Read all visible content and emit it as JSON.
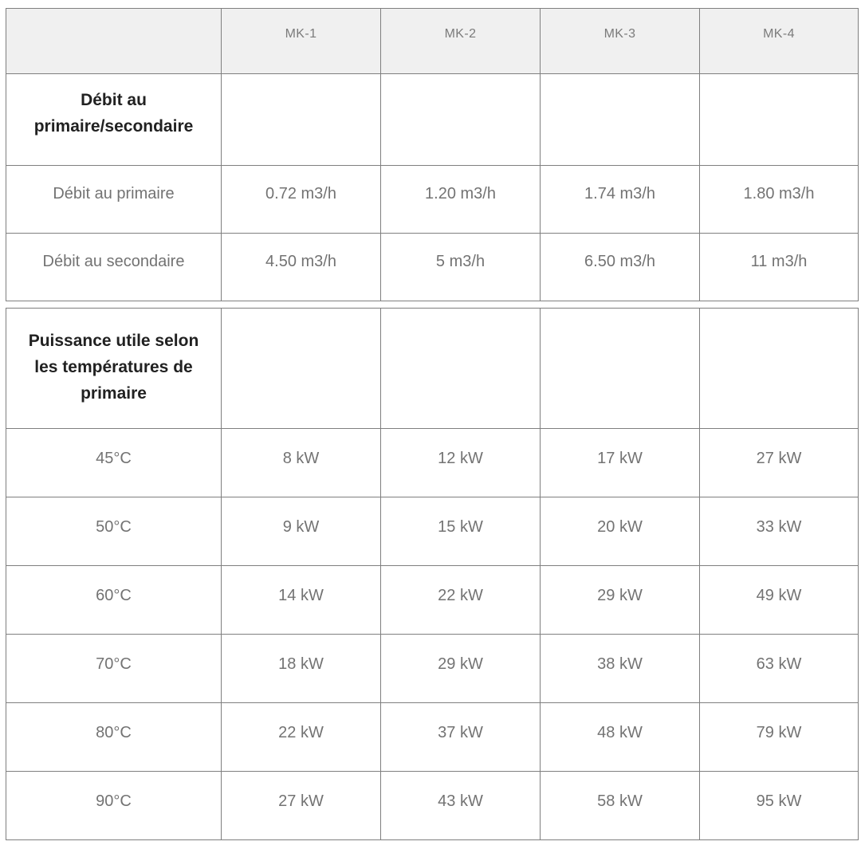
{
  "colors": {
    "page_bg": "#ffffff",
    "header_bg": "#f0f0f0",
    "border": "#7f7f7f",
    "header_text": "#7b7b7b",
    "cell_text": "#737373",
    "section_text": "#212121"
  },
  "tables": [
    {
      "column_headers": [
        "",
        "MK-1",
        "MK-2",
        "MK-3",
        "MK-4"
      ],
      "section_label": "Débit au primaire/secondaire",
      "section_label_lines": [
        "Débit au",
        "primaire/secondaire"
      ],
      "rows": [
        {
          "label": "Débit au primaire",
          "values": [
            "0.72 m3/h",
            "1.20 m3/h",
            "1.74 m3/h",
            "1.80 m3/h"
          ]
        },
        {
          "label": "Débit au secondaire",
          "values": [
            "4.50 m3/h",
            "5 m3/h",
            "6.50 m3/h",
            "11 m3/h"
          ]
        }
      ]
    },
    {
      "section_label": "Puissance utile selon les températures de primaire",
      "section_label_lines": [
        "Puissance utile selon",
        "les températures de",
        "primaire"
      ],
      "rows": [
        {
          "label": "45°C",
          "values": [
            "8 kW",
            "12 kW",
            "17 kW",
            "27 kW"
          ]
        },
        {
          "label": "50°C",
          "values": [
            "9 kW",
            "15 kW",
            "20 kW",
            "33 kW"
          ]
        },
        {
          "label": "60°C",
          "values": [
            "14 kW",
            "22 kW",
            "29 kW",
            "49 kW"
          ]
        },
        {
          "label": "70°C",
          "values": [
            "18 kW",
            "29 kW",
            "38 kW",
            "63 kW"
          ]
        },
        {
          "label": "80°C",
          "values": [
            "22 kW",
            "37 kW",
            "48 kW",
            "79 kW"
          ]
        },
        {
          "label": "90°C",
          "values": [
            "27 kW",
            "43 kW",
            "58 kW",
            "95 kW"
          ]
        }
      ]
    }
  ]
}
